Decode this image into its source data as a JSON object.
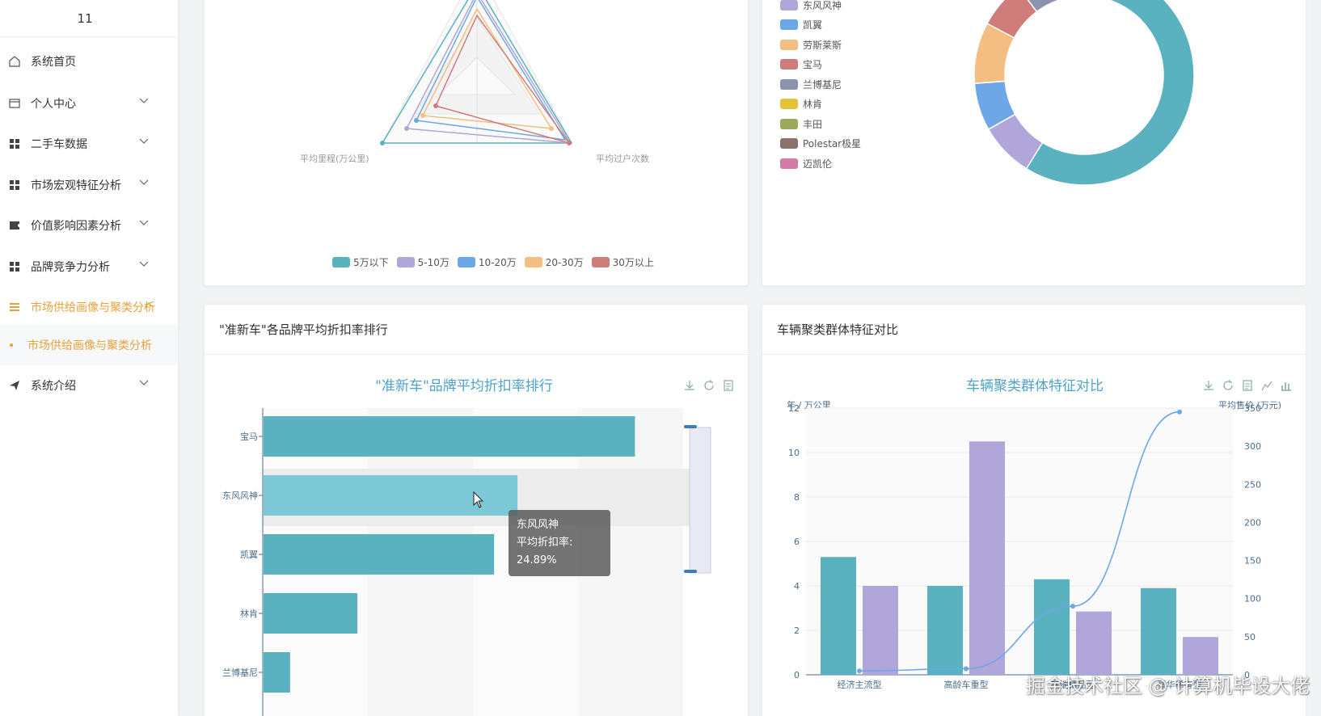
{
  "sidebar": {
    "top_label": "11",
    "items": [
      {
        "label": "系统首页"
      },
      {
        "label": "个人中心"
      },
      {
        "label": "二手车数据"
      },
      {
        "label": "市场宏观特征分析"
      },
      {
        "label": "价值影响因素分析"
      },
      {
        "label": "品牌竞争力分析"
      },
      {
        "label": "市场供给画像与聚类分析"
      },
      {
        "label": "系统介绍"
      }
    ],
    "sub_item": "市场供给画像与聚类分析"
  },
  "radar_card": {
    "indicator_left": "平均里程(万公里)",
    "indicator_right": "平均过户次数",
    "legend": [
      {
        "name": "5万以下",
        "color": "#5ab1bf"
      },
      {
        "name": "5-10万",
        "color": "#b0a6da"
      },
      {
        "name": "10-20万",
        "color": "#6ea7e6"
      },
      {
        "name": "20-30万",
        "color": "#f4bd81"
      },
      {
        "name": "30万以上",
        "color": "#d07c7b"
      }
    ]
  },
  "donut_card": {
    "legend": [
      {
        "name": "东风风神",
        "color": "#b0a6da"
      },
      {
        "name": "凯翼",
        "color": "#6ea7e6"
      },
      {
        "name": "劳斯莱斯",
        "color": "#f4bd81"
      },
      {
        "name": "宝马",
        "color": "#d07c7b"
      },
      {
        "name": "兰博基尼",
        "color": "#8a94ad"
      },
      {
        "name": "林肯",
        "color": "#e3c53d"
      },
      {
        "name": "丰田",
        "color": "#9bab5c"
      },
      {
        "name": "Polestar极星",
        "color": "#8d706a"
      },
      {
        "name": "迈凯伦",
        "color": "#d47aa6"
      }
    ]
  },
  "discount_card": {
    "header": "\"准新车\"各品牌平均折扣率排行",
    "chart_title": "\"准新车\"品牌平均折扣率排行",
    "tooltip_name": "东风风神",
    "tooltip_value": "平均折扣率: 24.89%"
  },
  "cluster_card": {
    "header": "车辆聚类群体特征对比",
    "chart_title": "车辆聚类群体特征对比",
    "y_left_label": "年 / 万公里",
    "y_right_label": "平均售价 (万元)"
  },
  "watermark": "掘金技术社区 @ 计算机毕设大佬",
  "chart_data": [
    {
      "type": "bar",
      "title": "\"准新车\"品牌平均折扣率排行",
      "orientation": "horizontal",
      "categories": [
        "宝马",
        "东风风神",
        "凯翼",
        "林肯",
        "兰博基尼"
      ],
      "values": [
        36.4,
        24.89,
        22.6,
        9.2,
        2.6
      ],
      "xlim": [
        0,
        42
      ]
    },
    {
      "type": "bar",
      "title": "车辆聚类群体特征对比",
      "categories": [
        "经济主流型",
        "高龄车重型",
        "高端精品型",
        "豪华稀有型"
      ],
      "ylim": [
        0,
        12
      ],
      "y2lim": [
        0,
        350
      ],
      "yticks": [
        0,
        2,
        4,
        6,
        8,
        10,
        12
      ],
      "y2ticks": [
        0,
        50,
        100,
        150,
        200,
        250,
        300,
        350
      ],
      "series": [
        {
          "values": [
            5.3,
            4.0,
            4.3,
            3.9
          ],
          "color": "#5ab1bf"
        },
        {
          "values": [
            4.0,
            10.5,
            2.85,
            1.7
          ],
          "color": "#b0a6da"
        },
        {
          "type": "line",
          "axis": "right",
          "values": [
            5,
            8,
            90,
            345
          ],
          "color": "#6ea7e6"
        }
      ]
    },
    {
      "type": "pie",
      "legend": [
        "东风风神",
        "凯翼",
        "劳斯莱斯",
        "宝马",
        "兰博基尼",
        "林肯",
        "丰田",
        "Polestar极星",
        "迈凯伦"
      ],
      "values": [
        8,
        7,
        9,
        7,
        6,
        5,
        0,
        0,
        0
      ],
      "other_value": 58
    }
  ]
}
